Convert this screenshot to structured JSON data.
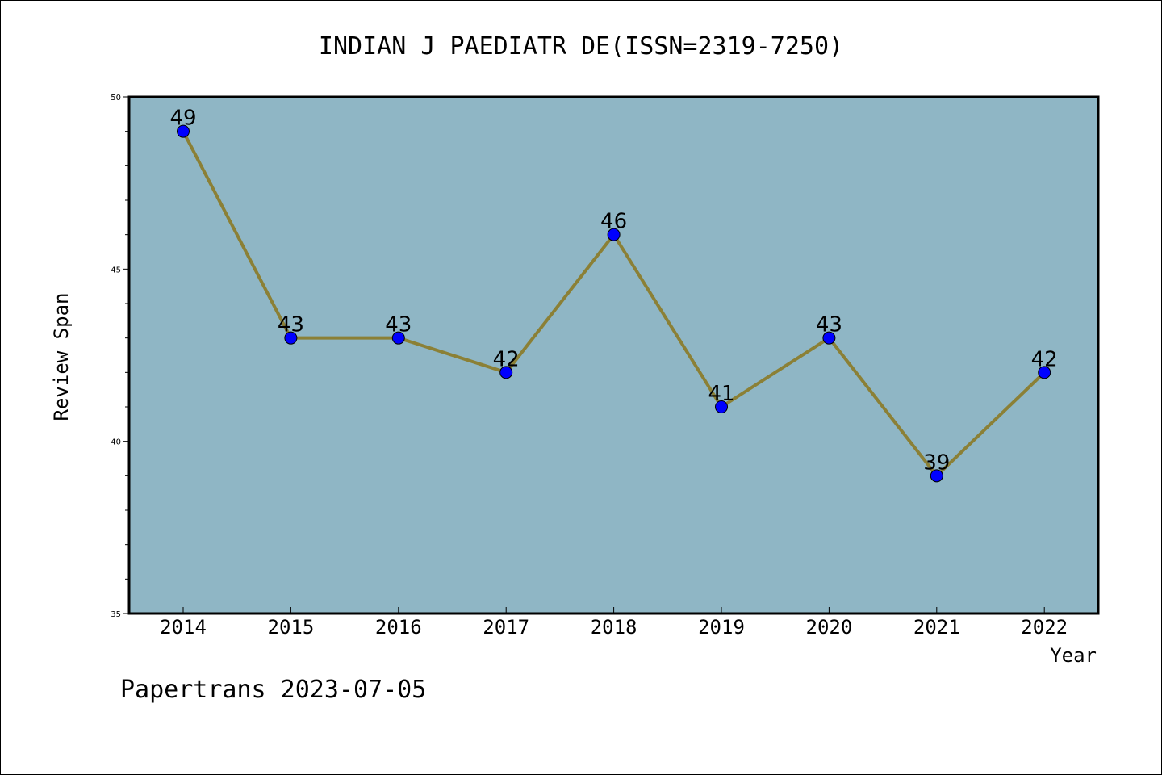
{
  "chart_data": {
    "type": "line",
    "title": "INDIAN J PAEDIATR DE(ISSN=2319-7250)",
    "xlabel": "Year",
    "ylabel": "Review Span",
    "categories": [
      "2014",
      "2015",
      "2016",
      "2017",
      "2018",
      "2019",
      "2020",
      "2021",
      "2022"
    ],
    "series": [
      {
        "values": [
          49,
          43,
          43,
          42,
          46,
          41,
          43,
          39,
          42
        ]
      }
    ],
    "ylim": [
      35,
      50
    ],
    "y_major_ticks": [
      35,
      40,
      45,
      50
    ],
    "data_labels": [
      "49",
      "43",
      "43",
      "42",
      "46",
      "41",
      "43",
      "39",
      "42"
    ],
    "grid": false,
    "legend": "none"
  },
  "footer": {
    "credit": "Papertrans 2023-07-05"
  },
  "colors": {
    "plot_background": "#8fb6c5",
    "line": "#8b8036",
    "marker": "#0000ff"
  }
}
